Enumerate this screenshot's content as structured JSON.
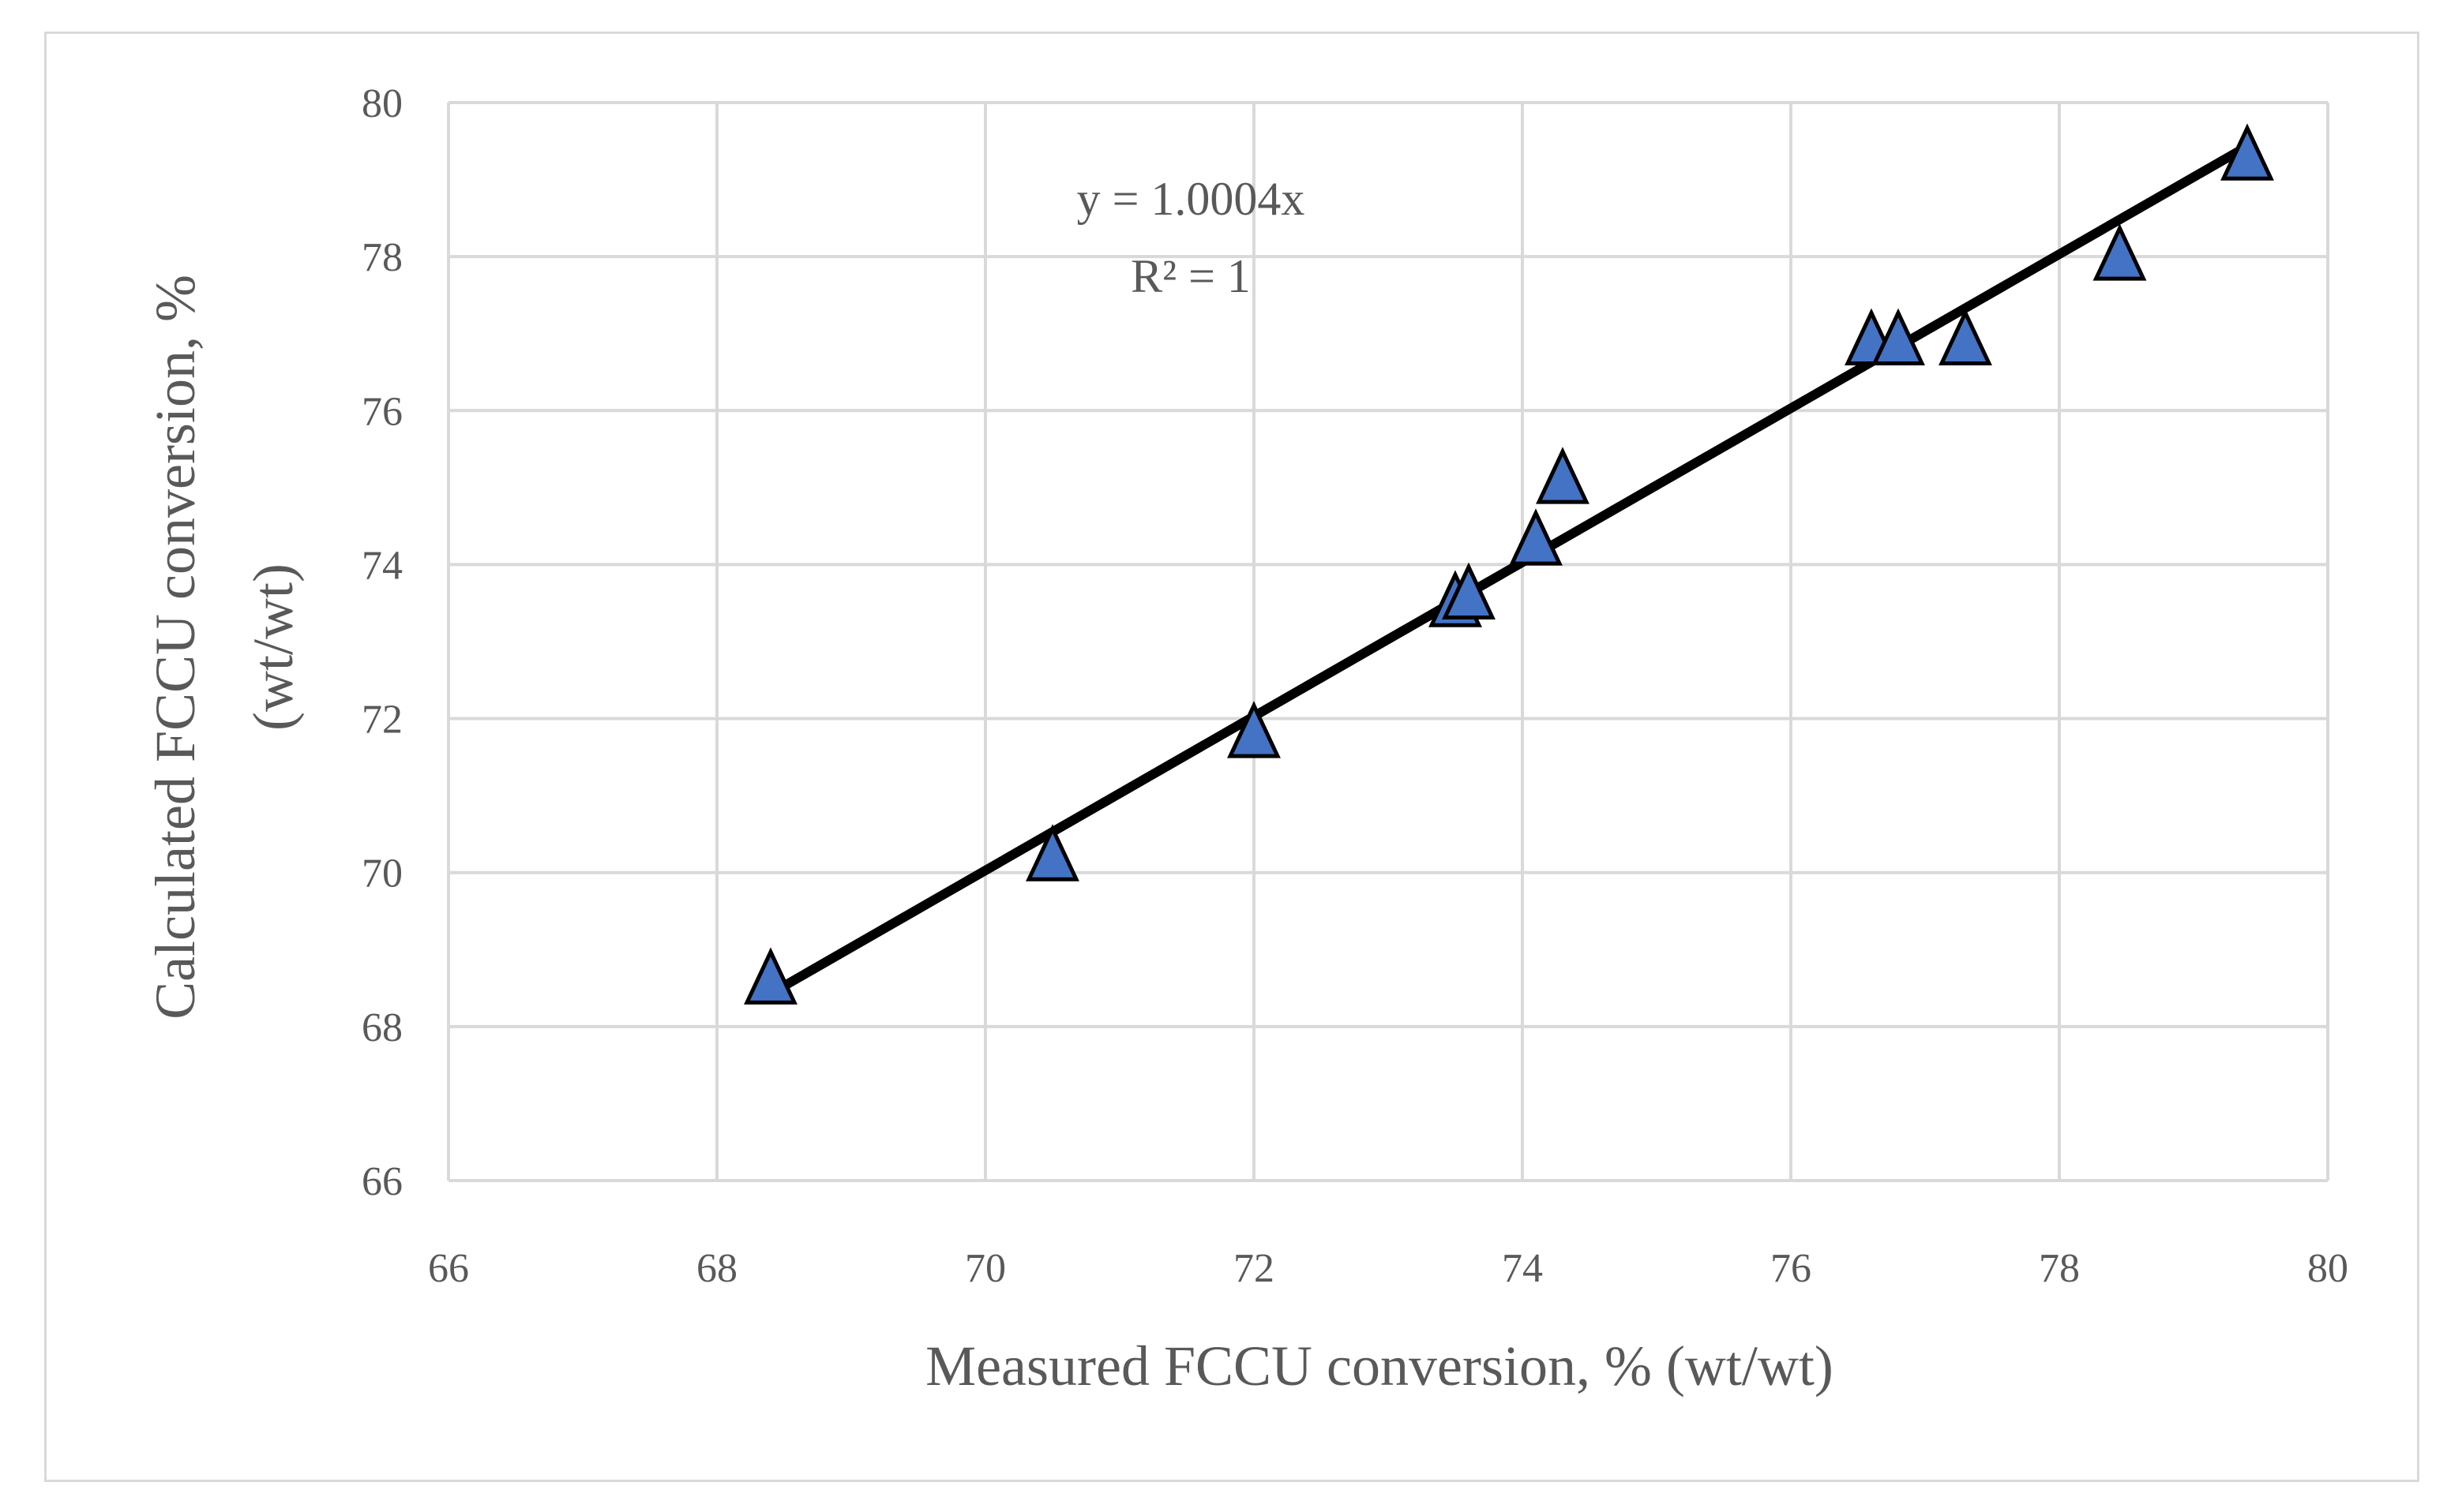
{
  "chart_data": {
    "type": "scatter",
    "title": "",
    "xlabel": "Measured FCCU conversion, % (wt/wt)",
    "ylabel_lines": [
      "Calculated FCCU conversion, %",
      "(wt/wt)"
    ],
    "xlim": [
      66,
      80
    ],
    "ylim": [
      66,
      80
    ],
    "x_ticks": [
      66,
      68,
      70,
      72,
      74,
      76,
      78,
      80
    ],
    "y_ticks": [
      66,
      68,
      70,
      72,
      74,
      76,
      78,
      80
    ],
    "grid": true,
    "marker": "triangle",
    "marker_color": "#4472c4",
    "trendline_color": "#000000",
    "series": [
      {
        "points": [
          {
            "x": 68.4,
            "y": 68.6
          },
          {
            "x": 70.5,
            "y": 70.2
          },
          {
            "x": 72.0,
            "y": 71.8
          },
          {
            "x": 73.5,
            "y": 73.5
          },
          {
            "x": 73.6,
            "y": 73.6
          },
          {
            "x": 74.1,
            "y": 74.3
          },
          {
            "x": 74.3,
            "y": 75.1
          },
          {
            "x": 76.6,
            "y": 76.9
          },
          {
            "x": 76.8,
            "y": 76.9
          },
          {
            "x": 77.3,
            "y": 76.9
          },
          {
            "x": 78.45,
            "y": 78.0
          },
          {
            "x": 79.4,
            "y": 79.3
          }
        ]
      }
    ],
    "trendline": {
      "slope": 1.0004,
      "x_from": 68.4,
      "x_to": 79.4
    },
    "annotations": [
      "y = 1.0004x",
      "R² = 1"
    ]
  }
}
